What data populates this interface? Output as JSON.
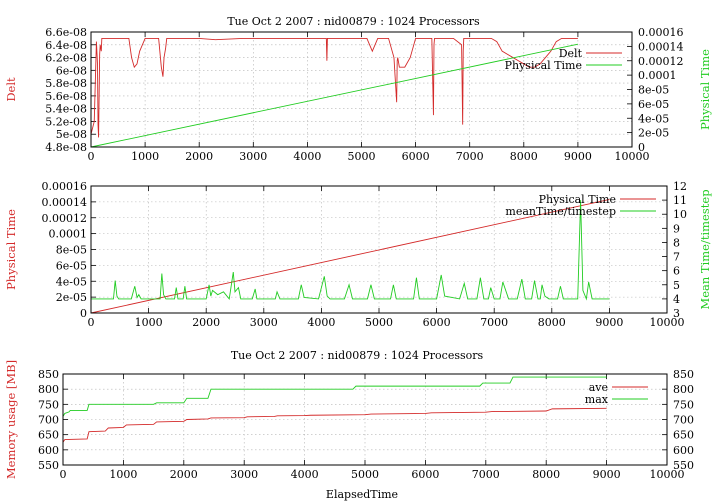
{
  "chart_data": [
    {
      "type": "line",
      "title": "Tue Oct 2 2007 : nid00879 : 1024 Processors",
      "xlabel": "",
      "ylabel": "Delt",
      "y2label": "Physical Time",
      "xlim": [
        0,
        10000
      ],
      "ylim": [
        4.8e-08,
        6.6e-08
      ],
      "y2lim": [
        0,
        0.00016
      ],
      "xticks": [
        "0",
        "1000",
        "2000",
        "3000",
        "4000",
        "5000",
        "6000",
        "7000",
        "8000",
        "9000",
        "10000"
      ],
      "yticks": [
        "4.8e-08",
        "5e-08",
        "5.2e-08",
        "5.4e-08",
        "5.6e-08",
        "5.8e-08",
        "6e-08",
        "6.2e-08",
        "6.4e-08",
        "6.6e-08"
      ],
      "y2ticks": [
        "0",
        "2e-05",
        "4e-05",
        "6e-05",
        "8e-05",
        "0.0001",
        "0.00012",
        "0.00014",
        "0.00016"
      ],
      "grid": true,
      "legend_position": "top-right",
      "series": [
        {
          "name": "Delt",
          "axis": "y",
          "color": "#d42a2a",
          "x": [
            0,
            60,
            100,
            120,
            130,
            140,
            150,
            160,
            170,
            190,
            200,
            700,
            750,
            800,
            850,
            900,
            1000,
            1250,
            1300,
            1330,
            1350,
            1380,
            1400,
            2000,
            2300,
            2800,
            4000,
            4350,
            4360,
            4370,
            5100,
            5200,
            5250,
            5300,
            5500,
            5600,
            5650,
            5660,
            5670,
            5700,
            5800,
            5900,
            6000,
            6300,
            6330,
            6340,
            6350,
            6700,
            6850,
            6870,
            6880,
            6890,
            7000,
            7400,
            7500,
            7600,
            7700,
            7800,
            7900,
            8000,
            8100,
            8200,
            8300,
            8400,
            8500,
            8600,
            8700,
            8800,
            8900,
            9000
          ],
          "values": [
            5e-08,
            5.2e-08,
            6.45e-08,
            6.1e-08,
            5.15e-08,
            4.95e-08,
            5.6e-08,
            6.25e-08,
            6.4e-08,
            6.3e-08,
            6.5e-08,
            6.5e-08,
            6.2e-08,
            6.05e-08,
            6.1e-08,
            6.3e-08,
            6.5e-08,
            6.5e-08,
            6.05e-08,
            5.9e-08,
            6.2e-08,
            6.35e-08,
            6.5e-08,
            6.5e-08,
            6.48e-08,
            6.5e-08,
            6.5e-08,
            6.5e-08,
            6.15e-08,
            6.5e-08,
            6.5e-08,
            6.3e-08,
            6.4e-08,
            6.5e-08,
            6.5e-08,
            6.2e-08,
            5.5e-08,
            6.15e-08,
            6.2e-08,
            6.05e-08,
            6.05e-08,
            6.2e-08,
            6.5e-08,
            6.5e-08,
            5.3e-08,
            6.4e-08,
            6.5e-08,
            6.5e-08,
            6.4e-08,
            5.15e-08,
            6.3e-08,
            6.5e-08,
            6.5e-08,
            6.5e-08,
            6.45e-08,
            6.3e-08,
            6.25e-08,
            6.2e-08,
            6.15e-08,
            6.1e-08,
            6.05e-08,
            6.05e-08,
            6.1e-08,
            6.2e-08,
            6.3e-08,
            6.45e-08,
            6.5e-08,
            6.5e-08,
            6.5e-08,
            6.5e-08
          ]
        },
        {
          "name": "Physical Time",
          "axis": "y2",
          "color": "#22cc22",
          "x": [
            0,
            9000
          ],
          "values": [
            0,
            0.000143
          ]
        }
      ]
    },
    {
      "type": "line",
      "title": "",
      "xlabel": "",
      "ylabel": "Physical Time",
      "y2label": "Mean Time/timestep",
      "xlim": [
        0,
        10000
      ],
      "ylim": [
        0,
        0.00016
      ],
      "y2lim": [
        3,
        12
      ],
      "xticks": [
        "0",
        "1000",
        "2000",
        "3000",
        "4000",
        "5000",
        "6000",
        "7000",
        "8000",
        "9000",
        "10000"
      ],
      "yticks": [
        "0",
        "2e-05",
        "4e-05",
        "6e-05",
        "8e-05",
        "0.0001",
        "0.00012",
        "0.00014",
        "0.00016"
      ],
      "y2ticks": [
        "3",
        "4",
        "5",
        "6",
        "7",
        "8",
        "9",
        "10",
        "11",
        "12"
      ],
      "grid": true,
      "legend_position": "top-right",
      "series": [
        {
          "name": "Physical Time",
          "axis": "y",
          "color": "#d42a2a",
          "x": [
            0,
            9000
          ],
          "values": [
            0,
            0.000143
          ]
        },
        {
          "name": "meanTime/timestep",
          "axis": "y2",
          "color": "#22cc22",
          "x": [
            0,
            390,
            420,
            450,
            480,
            700,
            760,
            800,
            830,
            870,
            1000,
            1200,
            1230,
            1260,
            1300,
            1450,
            1480,
            1510,
            1600,
            1630,
            1660,
            2000,
            2050,
            2080,
            2110,
            2200,
            2300,
            2400,
            2470,
            2500,
            2560,
            2600,
            2800,
            2850,
            2880,
            2950,
            3200,
            3230,
            3280,
            3600,
            3650,
            3700,
            3950,
            4050,
            4100,
            4150,
            4400,
            4480,
            4540,
            4800,
            4860,
            4920,
            5200,
            5250,
            5300,
            5600,
            5650,
            5700,
            6000,
            6080,
            6140,
            6400,
            6480,
            6540,
            6700,
            6760,
            6820,
            6900,
            6940,
            7000,
            7100,
            7150,
            7250,
            7400,
            7480,
            7540,
            7650,
            7700,
            7760,
            7800,
            7830,
            7880,
            7950,
            8100,
            8150,
            8200,
            8350,
            8450,
            8500,
            8540,
            8600,
            8640,
            8700,
            8800,
            9000
          ],
          "values": [
            4.0,
            4.0,
            5.3,
            4.2,
            4.0,
            4.0,
            4.9,
            4.1,
            4.3,
            4.0,
            4.0,
            4.0,
            5.8,
            4.3,
            4.0,
            4.0,
            4.8,
            4.0,
            4.0,
            4.9,
            4.0,
            4.0,
            5.0,
            4.2,
            4.6,
            4.3,
            4.5,
            4.0,
            5.9,
            4.5,
            4.8,
            4.0,
            4.0,
            4.7,
            4.0,
            4.0,
            4.0,
            4.5,
            4.0,
            4.0,
            5.0,
            4.1,
            4.0,
            5.6,
            4.2,
            4.0,
            4.0,
            5.0,
            4.0,
            4.0,
            5.0,
            4.0,
            4.0,
            5.0,
            4.0,
            4.0,
            5.5,
            4.0,
            4.0,
            5.7,
            4.2,
            4.0,
            5.1,
            4.0,
            4.0,
            5.5,
            4.0,
            4.0,
            4.8,
            4.0,
            4.0,
            5.2,
            4.0,
            4.0,
            5.4,
            4.0,
            4.0,
            5.3,
            4.0,
            4.0,
            5.0,
            4.2,
            4.0,
            4.0,
            4.9,
            4.0,
            4.0,
            4.0,
            11.0,
            4.6,
            4.0,
            5.2,
            4.0,
            4.0,
            4.0
          ]
        }
      ]
    },
    {
      "type": "line",
      "title": "Tue Oct 2 2007 : nid00879 : 1024 Processors",
      "xlabel": "ElapsedTime",
      "ylabel": "Memory usage [MB]",
      "y2label": "",
      "xlim": [
        0,
        10000
      ],
      "ylim": [
        550,
        850
      ],
      "y2lim": [
        550,
        850
      ],
      "xticks": [
        "0",
        "1000",
        "2000",
        "3000",
        "4000",
        "5000",
        "6000",
        "7000",
        "8000",
        "9000",
        "10000"
      ],
      "yticks": [
        "550",
        "600",
        "650",
        "700",
        "750",
        "800",
        "850"
      ],
      "y2ticks": [
        "550",
        "600",
        "650",
        "700",
        "750",
        "800",
        "850"
      ],
      "grid": true,
      "legend_position": "top-right",
      "series": [
        {
          "name": "ave",
          "axis": "y",
          "color": "#d42a2a",
          "x": [
            0,
            30,
            400,
            430,
            700,
            750,
            1000,
            1050,
            1500,
            1550,
            2000,
            2050,
            2400,
            2450,
            3000,
            3050,
            3500,
            3550,
            4000,
            4100,
            5000,
            5100,
            6000,
            6100,
            7000,
            7100,
            8000,
            8100,
            9000
          ],
          "values": [
            625,
            634,
            636,
            660,
            662,
            672,
            674,
            682,
            684,
            692,
            694,
            700,
            702,
            705,
            706,
            709,
            710,
            712,
            713,
            714,
            716,
            718,
            720,
            722,
            724,
            726,
            728,
            735,
            737
          ]
        },
        {
          "name": "max",
          "axis": "y",
          "color": "#22cc22",
          "x": [
            0,
            30,
            100,
            120,
            400,
            430,
            1500,
            1550,
            2000,
            2050,
            2400,
            2450,
            4800,
            4850,
            6900,
            6950,
            7400,
            7450,
            9000
          ],
          "values": [
            710,
            720,
            725,
            730,
            730,
            750,
            750,
            755,
            755,
            770,
            770,
            800,
            800,
            810,
            810,
            820,
            820,
            840,
            840
          ]
        }
      ]
    }
  ]
}
